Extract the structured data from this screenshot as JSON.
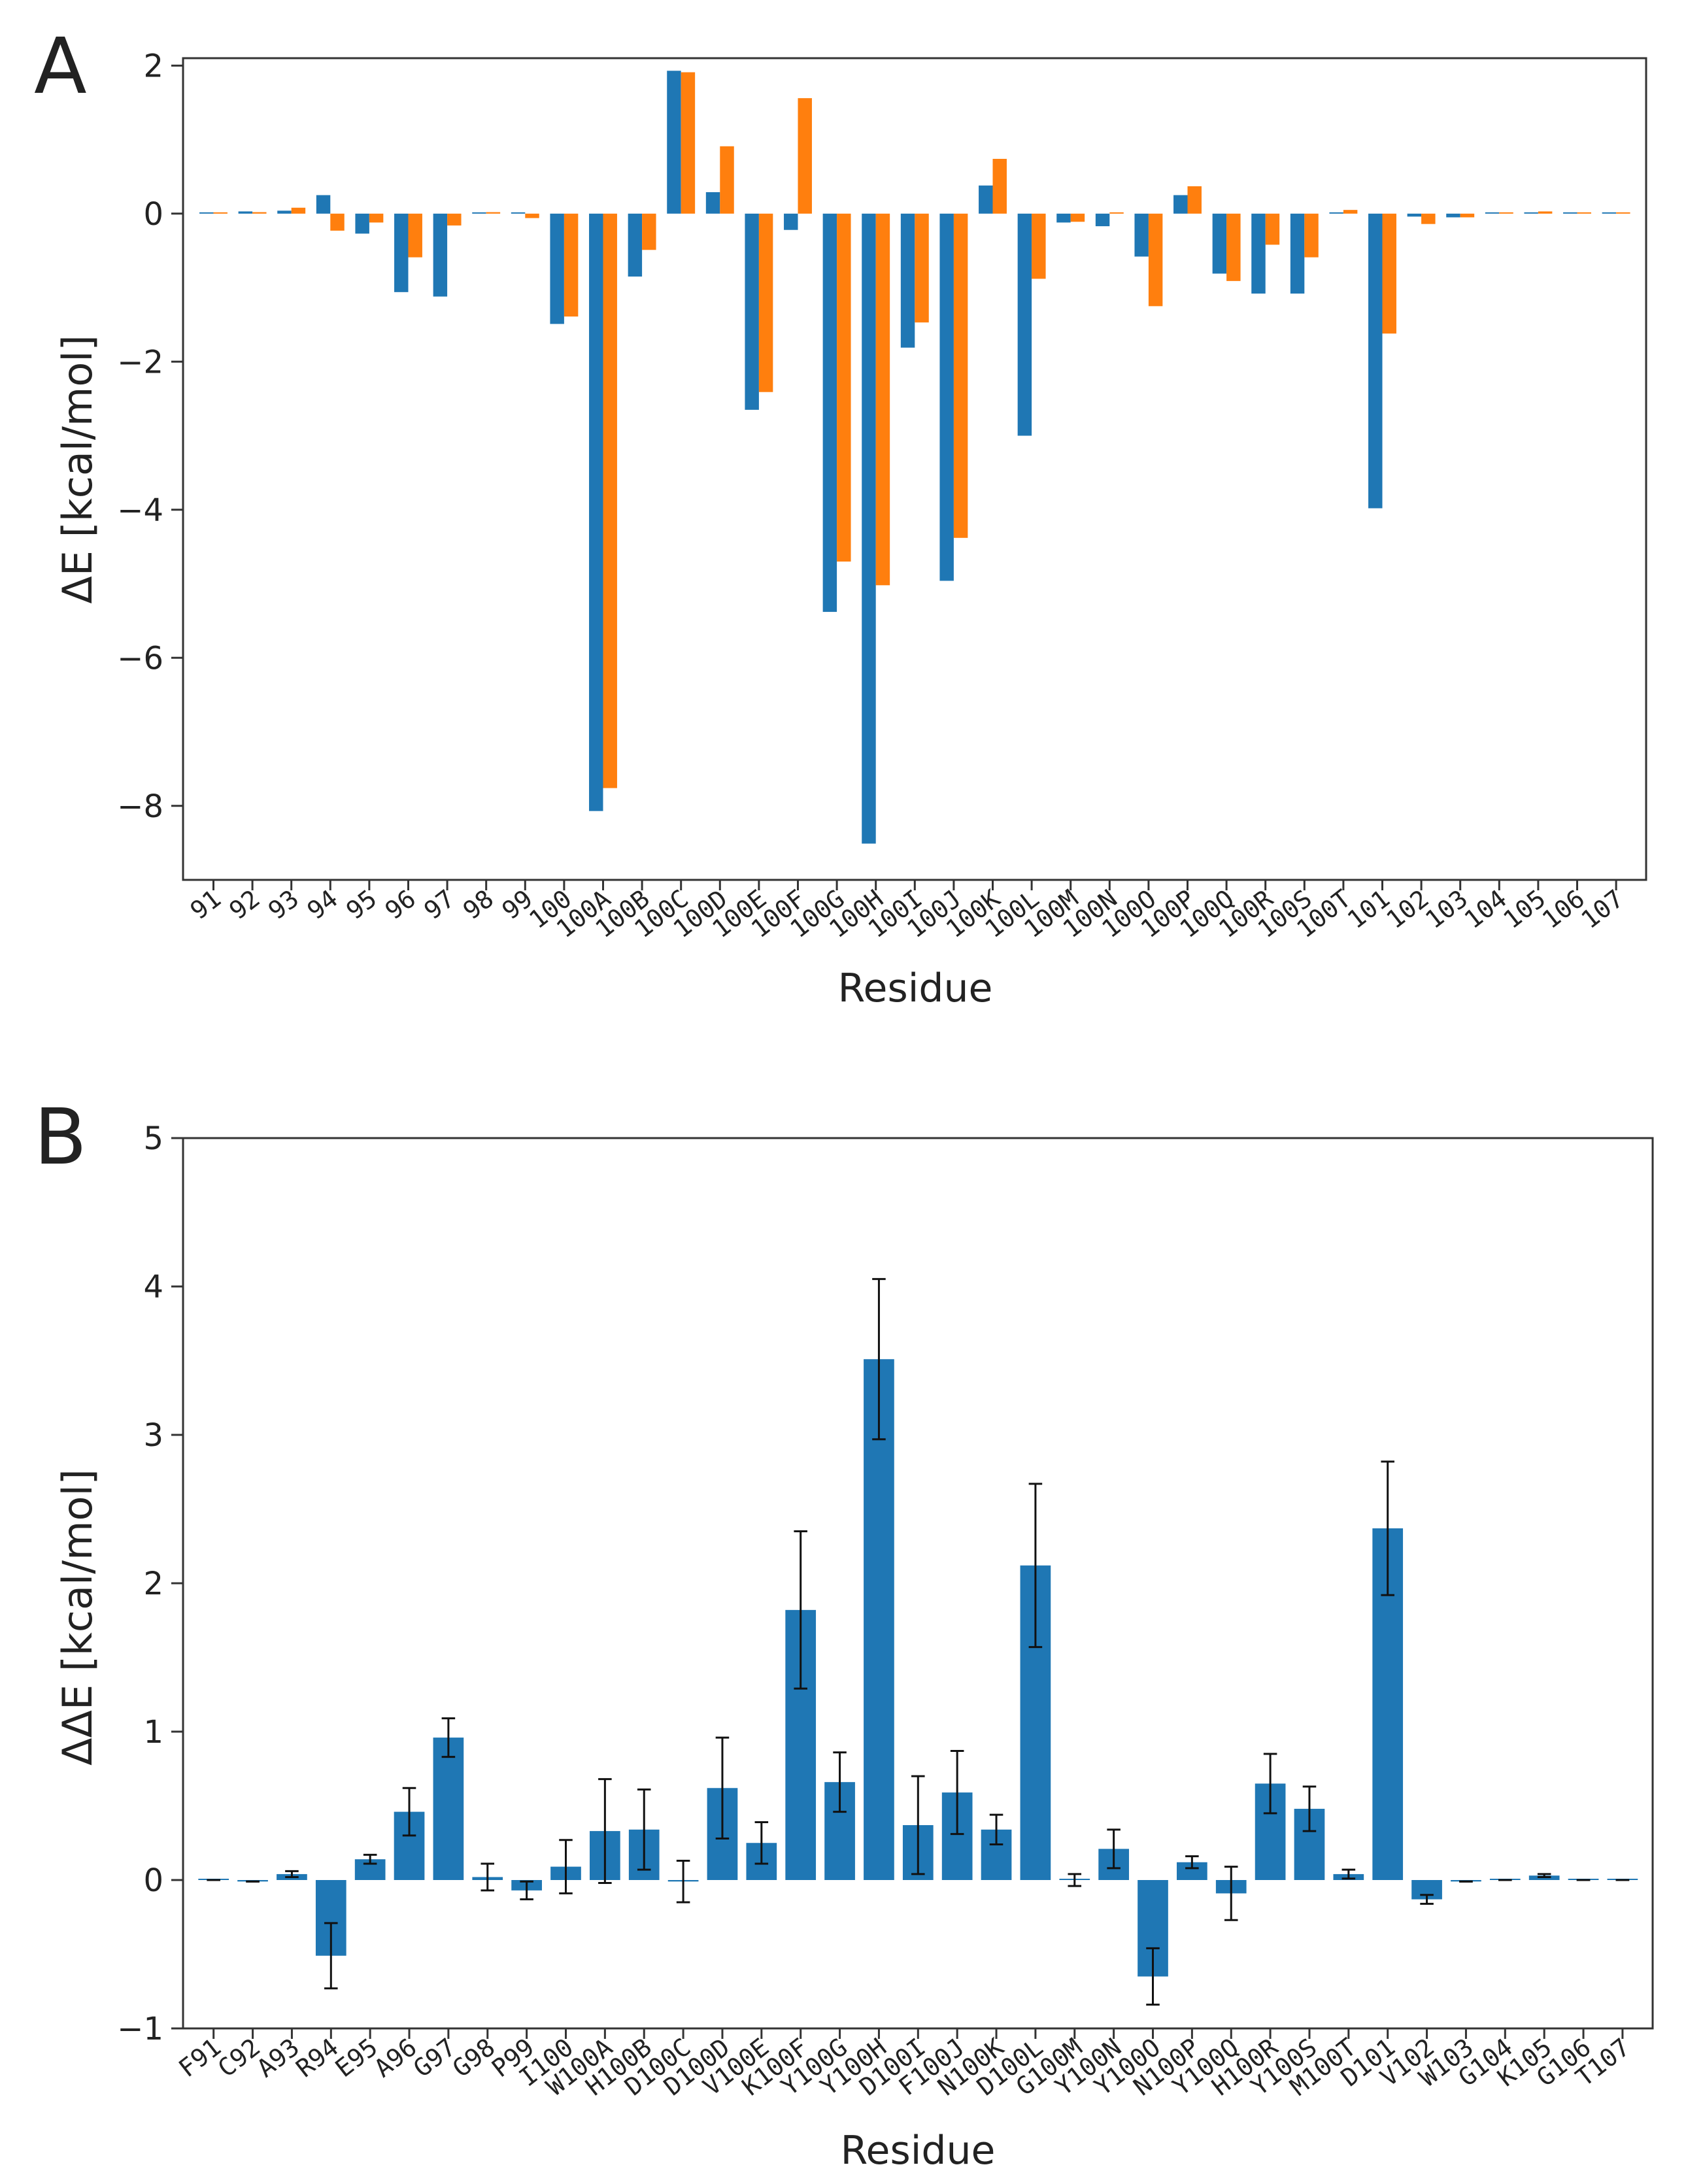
{
  "chart_data": [
    {
      "panel_label": "A",
      "type": "bar",
      "xlabel": "Residue",
      "ylabel": "ΔE [kcal/mol]",
      "ylim": [
        -9.0,
        2.1
      ],
      "yticks": [
        2,
        0,
        -2,
        -4,
        -6,
        -8
      ],
      "ytick_labels": [
        "2",
        "0",
        "−2",
        "−4",
        "−6",
        "−8"
      ],
      "categories": [
        "91",
        "92",
        "93",
        "94",
        "95",
        "96",
        "97",
        "98",
        "99",
        "100",
        "100A",
        "100B",
        "100C",
        "100D",
        "100E",
        "100F",
        "100G",
        "100H",
        "100I",
        "100J",
        "100K",
        "100L",
        "100M",
        "100N",
        "100O",
        "100P",
        "100Q",
        "100R",
        "100S",
        "100T",
        "101",
        "102",
        "103",
        "104",
        "105",
        "106",
        "107"
      ],
      "series": [
        {
          "name": "series-blue",
          "color": "#1f77b4",
          "values": [
            0.0,
            0.03,
            0.04,
            0.25,
            -0.27,
            -1.06,
            -1.12,
            0.0,
            0.01,
            -1.49,
            -8.07,
            -0.85,
            1.93,
            0.29,
            -2.65,
            -0.22,
            -5.38,
            -8.51,
            -1.81,
            -4.96,
            0.38,
            -3.0,
            -0.12,
            -0.17,
            -0.58,
            0.25,
            -0.81,
            -1.08,
            -1.08,
            0.0,
            -3.98,
            -0.04,
            -0.05,
            0.0,
            0.0,
            0.0,
            0.0
          ]
        },
        {
          "name": "series-orange",
          "color": "#ff7f0e",
          "values": [
            0.0,
            0.02,
            0.08,
            -0.23,
            -0.12,
            -0.59,
            -0.16,
            0.02,
            -0.06,
            -1.39,
            -7.76,
            -0.49,
            1.91,
            0.91,
            -2.41,
            1.56,
            -4.7,
            -5.02,
            -1.47,
            -4.38,
            0.74,
            -0.88,
            -0.11,
            0.0,
            -1.25,
            0.37,
            -0.91,
            -0.42,
            -0.59,
            0.05,
            -1.62,
            -0.14,
            -0.05,
            0.0,
            0.03,
            0.0,
            0.0
          ]
        }
      ]
    },
    {
      "panel_label": "B",
      "type": "bar",
      "xlabel": "Residue",
      "ylabel": "ΔΔE [kcal/mol]",
      "ylim": [
        -1.0,
        5.0
      ],
      "yticks": [
        5,
        4,
        3,
        2,
        1,
        0,
        -1
      ],
      "ytick_labels": [
        "5",
        "4",
        "3",
        "2",
        "1",
        "0",
        "−1"
      ],
      "categories": [
        "F91",
        "C92",
        "A93",
        "R94",
        "E95",
        "A96",
        "G97",
        "G98",
        "P99",
        "I100",
        "W100A",
        "H100B",
        "D100C",
        "D100D",
        "V100E",
        "K100F",
        "Y100G",
        "Y100H",
        "D100I",
        "F100J",
        "N100K",
        "D100L",
        "G100M",
        "Y100N",
        "Y100O",
        "N100P",
        "Y100Q",
        "H100R",
        "Y100S",
        "M100T",
        "D101",
        "V102",
        "W103",
        "G104",
        "K105",
        "G106",
        "T107"
      ],
      "series": [
        {
          "name": "ddE",
          "color": "#1f77b4",
          "values": [
            0.0,
            -0.01,
            0.04,
            -0.51,
            0.14,
            0.46,
            0.96,
            0.02,
            -0.07,
            0.09,
            0.33,
            0.34,
            -0.01,
            0.62,
            0.25,
            1.82,
            0.66,
            3.51,
            0.37,
            0.59,
            0.34,
            2.12,
            0.0,
            0.21,
            -0.65,
            0.12,
            -0.09,
            0.65,
            0.48,
            0.04,
            2.37,
            -0.13,
            -0.01,
            0.0,
            0.03,
            0.0,
            0.0
          ],
          "errors": [
            0.0,
            0.0,
            0.02,
            0.22,
            0.03,
            0.16,
            0.13,
            0.09,
            0.06,
            0.18,
            0.35,
            0.27,
            0.14,
            0.34,
            0.14,
            0.53,
            0.2,
            0.54,
            0.33,
            0.28,
            0.1,
            0.55,
            0.04,
            0.13,
            0.19,
            0.04,
            0.18,
            0.2,
            0.15,
            0.03,
            0.45,
            0.03,
            0.0,
            0.0,
            0.01,
            0.0,
            0.0
          ]
        }
      ]
    }
  ]
}
